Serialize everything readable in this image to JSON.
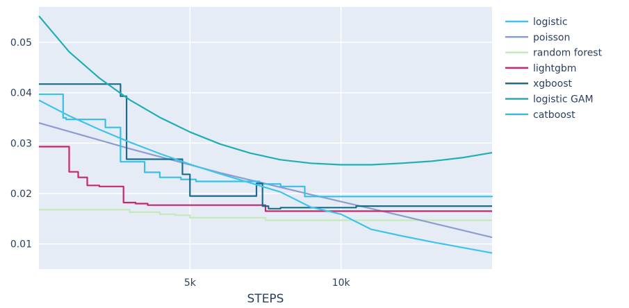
{
  "chart_data": {
    "type": "line",
    "xlabel": "STEPS",
    "ylabel": "",
    "xlim": [
      0,
      15000
    ],
    "ylim": [
      0.005,
      0.057
    ],
    "x_ticks": [
      5000,
      10000
    ],
    "x_tick_labels": [
      "5k",
      "10k"
    ],
    "y_ticks": [
      0.01,
      0.02,
      0.03,
      0.04,
      0.05
    ],
    "y_tick_labels": [
      "0.01",
      "0.02",
      "0.03",
      "0.04",
      "0.05"
    ],
    "grid": true,
    "legend_position": "right",
    "series": [
      {
        "name": "logistic",
        "color": "#3fc3ea",
        "shape": "linear",
        "x": [
          0,
          1000,
          2000,
          3000,
          4000,
          5000,
          6000,
          7000,
          8000,
          9000,
          10000,
          11000,
          12000,
          13000,
          14000,
          15000
        ],
        "y": [
          0.0385,
          0.0354,
          0.0327,
          0.0302,
          0.0279,
          0.0258,
          0.0239,
          0.0221,
          0.0203,
          0.0173,
          0.0159,
          0.0129,
          0.0116,
          0.0104,
          0.0093,
          0.0082
        ]
      },
      {
        "name": "poisson",
        "color": "#8e9ccf",
        "shape": "linear",
        "x": [
          0,
          3000,
          6000,
          9000,
          12000,
          15000
        ],
        "y": [
          0.034,
          0.0289,
          0.0241,
          0.0198,
          0.0156,
          0.0113
        ]
      },
      {
        "name": "random forest",
        "color": "#c6e8bd",
        "shape": "hv",
        "x": [
          0,
          2000,
          3000,
          4000,
          4500,
          5000,
          7500,
          15000
        ],
        "y": [
          0.0168,
          0.0168,
          0.0163,
          0.0159,
          0.0157,
          0.0152,
          0.0147,
          0.0147
        ]
      },
      {
        "name": "lightgbm",
        "color": "#c8286b",
        "shape": "hv",
        "x": [
          0,
          1000,
          1300,
          1600,
          2000,
          2800,
          3200,
          3600,
          7500,
          15000
        ],
        "y": [
          0.0293,
          0.0243,
          0.0232,
          0.0216,
          0.0214,
          0.0182,
          0.018,
          0.0177,
          0.0165,
          0.0165
        ]
      },
      {
        "name": "xgboost",
        "color": "#1b6b8c",
        "shape": "hv",
        "x": [
          0,
          2700,
          2900,
          4750,
          5000,
          7200,
          7400,
          7600,
          8000,
          10500,
          15000
        ],
        "y": [
          0.0417,
          0.0393,
          0.0268,
          0.0238,
          0.0195,
          0.022,
          0.0175,
          0.017,
          0.0172,
          0.0175,
          0.0175
        ]
      },
      {
        "name": "logistic GAM",
        "color": "#20aeb2",
        "shape": "linear",
        "x": [
          0,
          1000,
          2000,
          3000,
          4000,
          5000,
          6000,
          7000,
          8000,
          9000,
          10000,
          11000,
          12000,
          13000,
          14000,
          15000
        ],
        "y": [
          0.0552,
          0.0481,
          0.0429,
          0.0386,
          0.0351,
          0.0322,
          0.0298,
          0.028,
          0.0267,
          0.026,
          0.0257,
          0.0257,
          0.026,
          0.0264,
          0.0271,
          0.0281
        ]
      },
      {
        "name": "catboost",
        "color": "#36bfe8",
        "shape": "hv",
        "x": [
          0,
          800,
          900,
          2200,
          2700,
          3500,
          4000,
          4700,
          5200,
          7300,
          8000,
          8800,
          15000
        ],
        "y": [
          0.0397,
          0.035,
          0.0347,
          0.0331,
          0.0263,
          0.0242,
          0.0232,
          0.0228,
          0.0224,
          0.0219,
          0.0214,
          0.0194,
          0.0193
        ]
      }
    ]
  }
}
